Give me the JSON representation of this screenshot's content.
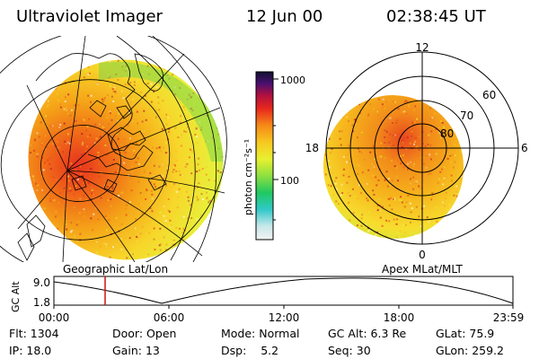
{
  "header": {
    "instrument": "Ultraviolet Imager",
    "date": "12 Jun 00",
    "time": "02:38:45 UT"
  },
  "colorbar": {
    "unit_label": "photon cm⁻²s⁻¹",
    "ticks": [
      "1000",
      "100"
    ]
  },
  "left_panel": {
    "label": "Geographic Lat/Lon"
  },
  "right_panel": {
    "label": "Apex MLat/MLT",
    "mlt_labels": [
      "12",
      "18",
      "6",
      "0"
    ],
    "lat_labels": [
      "60",
      "70",
      "80"
    ]
  },
  "timeline": {
    "axis_label": "GC Alt",
    "y_ticks": [
      "9.0",
      "1.8"
    ],
    "x_ticks": [
      "00:00",
      "06:00",
      "12:00",
      "18:00",
      "23:59"
    ]
  },
  "status": {
    "row1": [
      {
        "label": "Flt:",
        "value": "1304"
      },
      {
        "label": "Door:",
        "value": "Open"
      },
      {
        "label": "Mode:",
        "value": "Normal"
      },
      {
        "label": "GC Alt:",
        "value": "6.3 Re"
      },
      {
        "label": "GLat:",
        "value": "75.9"
      }
    ],
    "row2": [
      {
        "label": "IP:",
        "value": "18.0"
      },
      {
        "label": "Gain:",
        "value": "13"
      },
      {
        "label": "Dsp:",
        "value": "5.2"
      },
      {
        "label": "Seq:",
        "value": "30"
      },
      {
        "label": "GLon:",
        "value": "259.2"
      }
    ]
  }
}
